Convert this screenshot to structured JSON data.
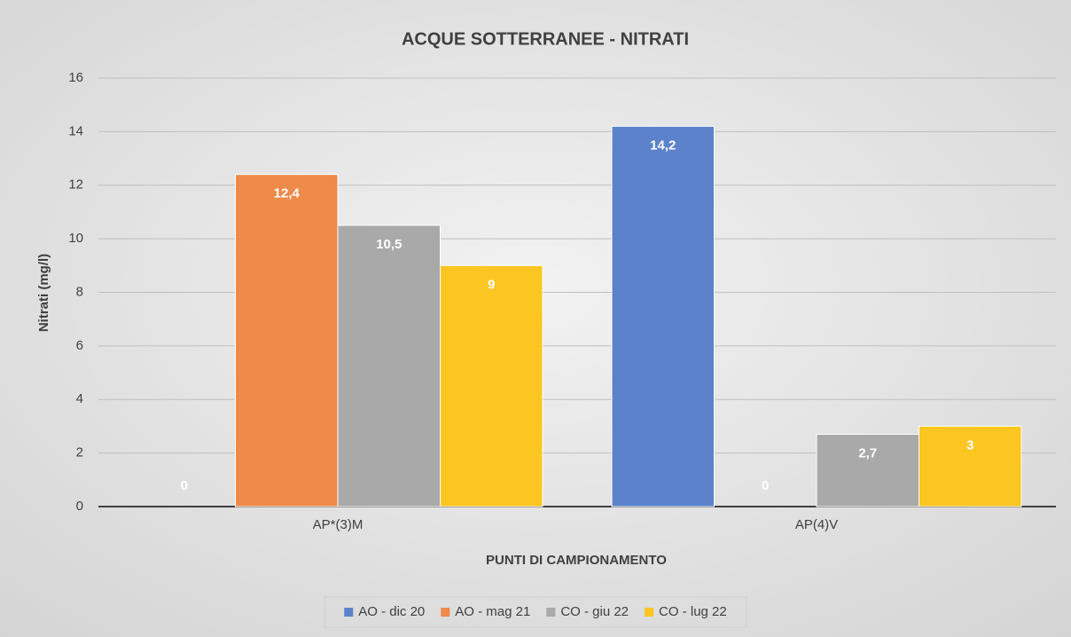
{
  "chart_data": {
    "type": "bar",
    "title": "ACQUE SOTTERRANEE - NITRATI",
    "x_label": "PUNTI DI CAMPIONAMENTO",
    "y_label": "Nitrati (mg/l)",
    "categories": [
      "AP*(3)M",
      "AP(4)V"
    ],
    "series": [
      {
        "name": "AO - dic 20",
        "color": "#5b82cb",
        "values": [
          0,
          14.2
        ],
        "value_labels": [
          "0",
          "14,2"
        ]
      },
      {
        "name": "AO - mag 21",
        "color": "#ee8a4a",
        "values": [
          12.4,
          0
        ],
        "value_labels": [
          "12,4",
          "0"
        ]
      },
      {
        "name": "CO - giu 22",
        "color": "#a9a9a9",
        "values": [
          10.5,
          2.7
        ],
        "value_labels": [
          "10,5",
          "2,7"
        ]
      },
      {
        "name": "CO - lug 22",
        "color": "#fbc522",
        "values": [
          9,
          3
        ],
        "value_labels": [
          "9",
          "3"
        ]
      }
    ],
    "ylim": [
      0,
      16
    ],
    "yticks": [
      0,
      2,
      4,
      6,
      8,
      10,
      12,
      14,
      16
    ],
    "grid": true,
    "legend": "bottom"
  }
}
